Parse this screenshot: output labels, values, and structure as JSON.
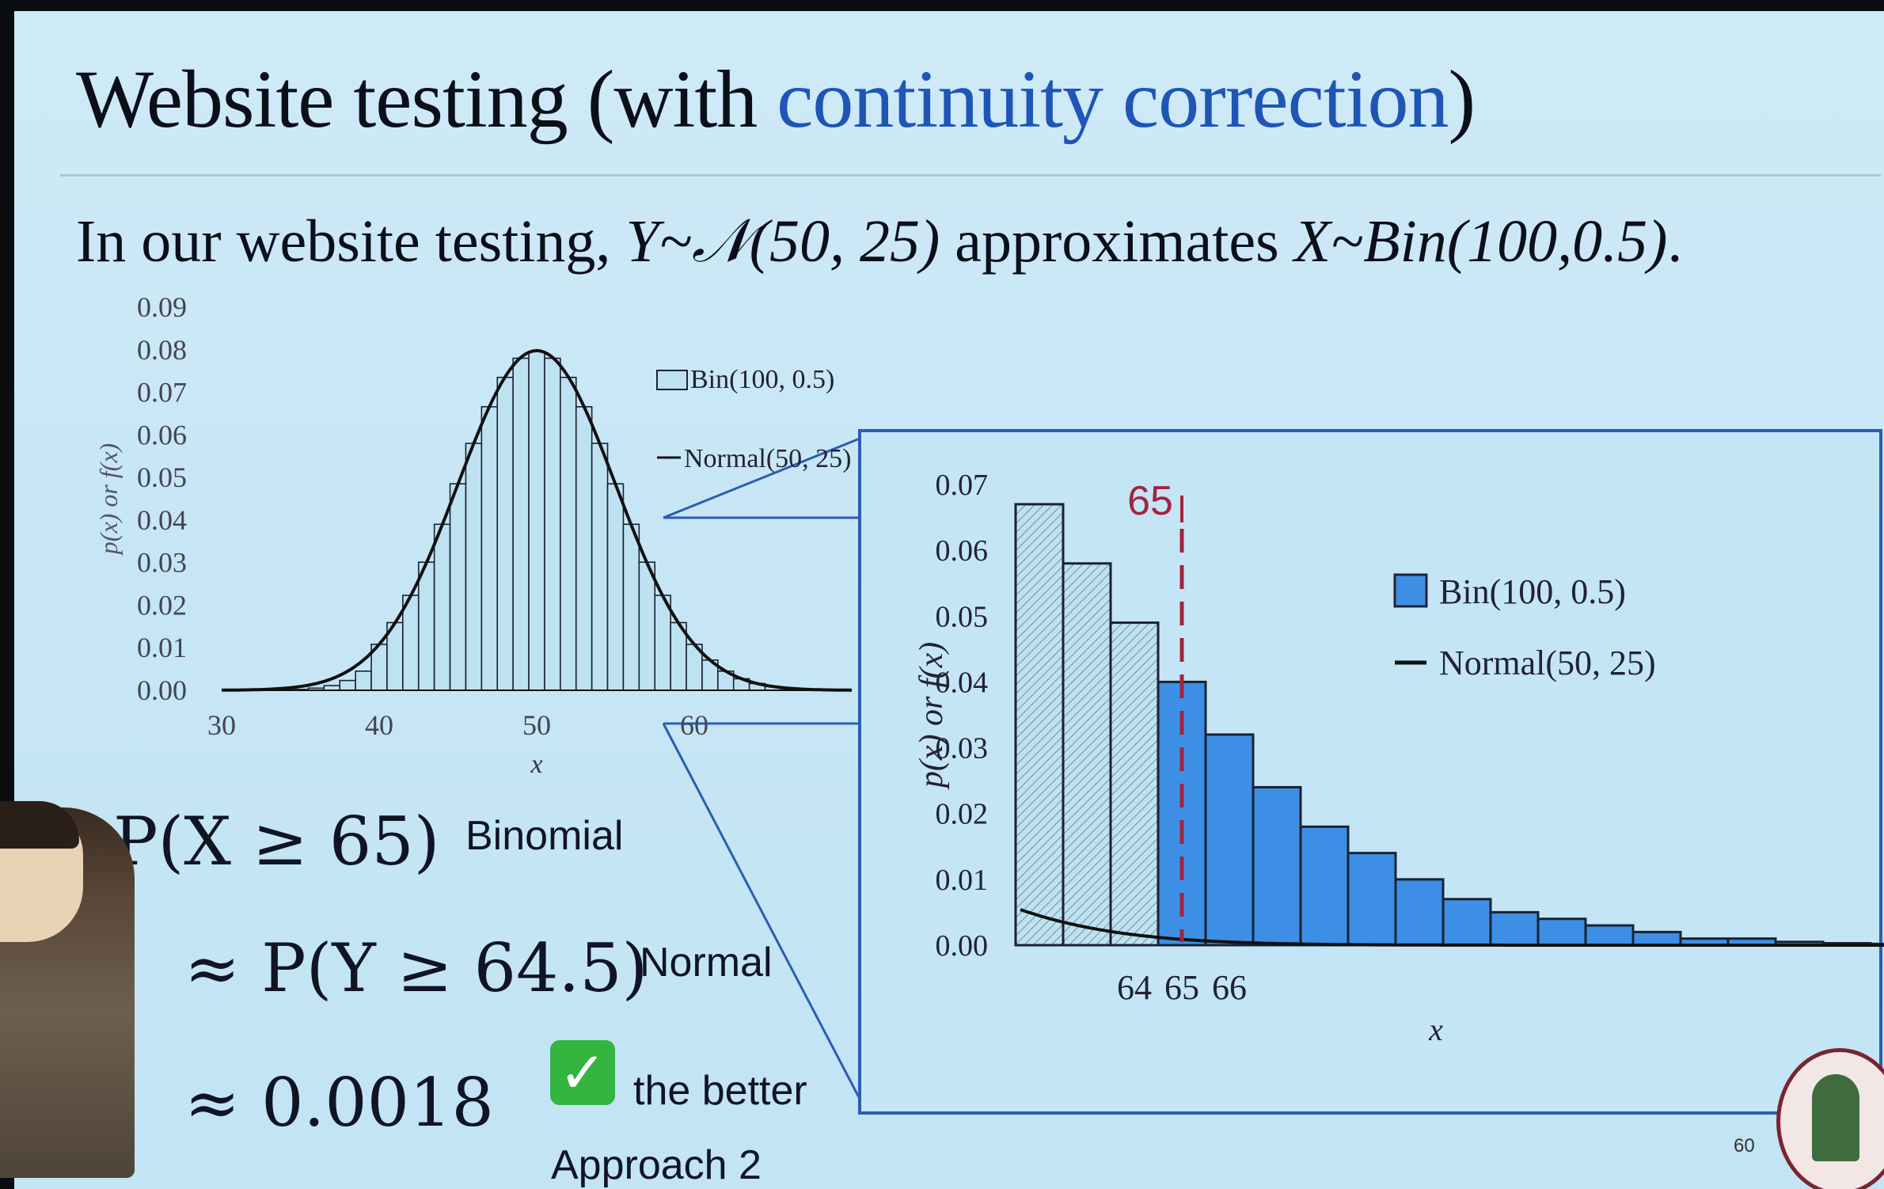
{
  "title": {
    "text_before": "Website testing (with ",
    "accent": "continuity correction",
    "text_after": ")"
  },
  "intro": {
    "part1": "In our website testing, ",
    "y_dist": "Y~𝒩(50, 25)",
    "part2": " approximates ",
    "x_dist": "X~Bin(100,0.5)",
    "part3": "."
  },
  "equations": {
    "line1": "P(X ≥ 65)",
    "line1_tag": "Binomial",
    "line2": "≈ P(Y ≥ 64.5)",
    "line2_tag": "Normal",
    "line3": "≈ 0.0018",
    "line3_tag": "the better",
    "approach": "Approach 2"
  },
  "icons": {
    "check": "check-mark-icon",
    "check_glyph": "✓",
    "seal": "university-seal-icon"
  },
  "page_number": "60",
  "colors": {
    "accent": "#1e55b6",
    "bar_light": "#bfe2f2",
    "bar_highlight": "#3d8fe6",
    "marker": "#a3243d",
    "zoom_frame": "#2a5db3"
  },
  "chart_data": [
    {
      "type": "bar",
      "series": [
        {
          "name": "Bin(100, 0.5)",
          "kind": "bar",
          "x": [
            34,
            35,
            36,
            37,
            38,
            39,
            40,
            41,
            42,
            43,
            44,
            45,
            46,
            47,
            48,
            49,
            50,
            51,
            52,
            53,
            54,
            55,
            56,
            57,
            58,
            59,
            60,
            61,
            62,
            63,
            64,
            65,
            66
          ],
          "values": [
            0.0001,
            0.0002,
            0.0005,
            0.0011,
            0.0023,
            0.0045,
            0.0108,
            0.0159,
            0.0223,
            0.0301,
            0.039,
            0.0485,
            0.058,
            0.0666,
            0.0735,
            0.078,
            0.0796,
            0.078,
            0.0735,
            0.0666,
            0.058,
            0.0485,
            0.039,
            0.0301,
            0.0223,
            0.0159,
            0.0108,
            0.0071,
            0.0045,
            0.0027,
            0.0016,
            0.0009,
            0.0005
          ]
        },
        {
          "name": "Normal(50, 25)",
          "kind": "line",
          "x_range": [
            30,
            70
          ],
          "mean": 50,
          "variance": 25
        }
      ],
      "legend_labels": [
        "Bin(100, 0.5)",
        "Normal(50, 25)"
      ],
      "xticks": [
        "30",
        "40",
        "50",
        "60"
      ],
      "yticks": [
        "0.00",
        "0.01",
        "0.02",
        "0.03",
        "0.04",
        "0.05",
        "0.06",
        "0.07",
        "0.08",
        "0.09"
      ],
      "xlabel": "x",
      "ylabel": "p(x) or f(x)",
      "xlim": [
        30,
        70
      ],
      "ylim": [
        0,
        0.09
      ],
      "legend": "top-right"
    },
    {
      "type": "bar",
      "series": [
        {
          "name": "Bin(100, 0.5)",
          "kind": "bar",
          "x": [
            62,
            63,
            64,
            65,
            66,
            67,
            68,
            69,
            70,
            71,
            72,
            73,
            74,
            75,
            76,
            77,
            78,
            79,
            80
          ],
          "values": [
            0.067,
            0.058,
            0.049,
            0.04,
            0.032,
            0.024,
            0.018,
            0.014,
            0.01,
            0.007,
            0.005,
            0.004,
            0.003,
            0.002,
            0.001,
            0.001,
            0.0005,
            0.0003,
            0.0002
          ],
          "highlight_from": 65
        },
        {
          "name": "Normal(50, 25)",
          "kind": "line",
          "x_range": [
            62,
            80
          ],
          "mean": 50,
          "variance": 25
        }
      ],
      "legend_labels": [
        "Bin(100, 0.5)",
        "Normal(50, 25)"
      ],
      "xticks": [
        "64",
        "65",
        "66"
      ],
      "yticks": [
        "0.00",
        "0.01",
        "0.02",
        "0.03",
        "0.04",
        "0.05",
        "0.06",
        "0.07"
      ],
      "xlabel": "x",
      "ylabel": "p(x) or f(x)",
      "ylim": [
        0,
        0.07
      ],
      "marker": {
        "x": 65,
        "label": "65",
        "style": "dashed"
      },
      "legend": "right"
    }
  ]
}
